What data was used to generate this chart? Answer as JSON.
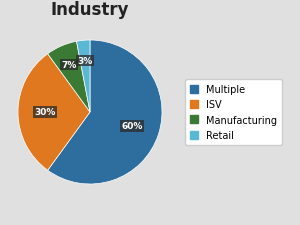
{
  "title": "Industry",
  "labels": [
    "Multiple",
    "ISV",
    "Manufacturing",
    "Retail"
  ],
  "values": [
    60,
    30,
    7,
    3
  ],
  "colors": [
    "#2E6E9E",
    "#E07820",
    "#3A7A34",
    "#5BB8D4"
  ],
  "pct_labels": [
    "60%",
    "30%",
    "7%",
    "3%"
  ],
  "background_color": "#E0E0E0",
  "title_fontsize": 12,
  "legend_fontsize": 7,
  "startangle": 90,
  "label_r": [
    0.62,
    0.62,
    0.72,
    0.72
  ]
}
